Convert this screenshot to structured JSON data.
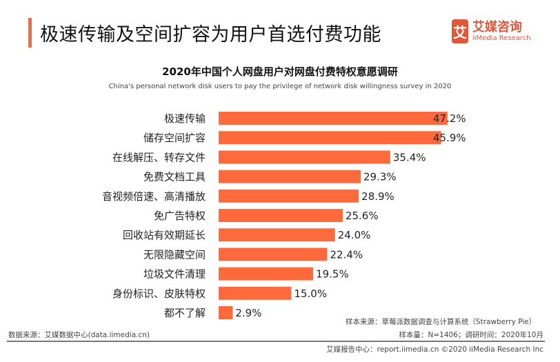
{
  "header": {
    "title": "极速传输及空间扩容为用户首选付费功能",
    "logo_mark": "艾",
    "logo_cn": "艾媒咨询",
    "logo_en": "iiMedia Research"
  },
  "chart_data": {
    "type": "bar",
    "orientation": "horizontal",
    "title": "2020年中国个人网盘用户对网盘付费特权意愿调研",
    "subtitle": "China's personal network disk users to pay the privilege of network disk willingness survey in 2020",
    "categories": [
      "极速传输",
      "储存空间扩容",
      "在线解压、转存文件",
      "免费文档工具",
      "音视频倍速、高清播放",
      "免广告特权",
      "回收站有效期延长",
      "无限隐藏空间",
      "垃圾文件清理",
      "身份标识、皮肤特权",
      "都不了解"
    ],
    "values": [
      47.2,
      45.9,
      35.4,
      29.3,
      28.9,
      25.6,
      24.0,
      22.4,
      19.5,
      15.0,
      2.9
    ],
    "labels": [
      "47.2%",
      "45.9%",
      "35.4%",
      "29.3%",
      "28.9%",
      "25.6%",
      "24.0%",
      "22.4%",
      "19.5%",
      "15.0%",
      "2.9%"
    ],
    "unit": "%",
    "bar_color": "#ff6a3d",
    "grid": false
  },
  "footer": {
    "data_source": "数据来源：艾媒数据中心(data.iimedia.cn)",
    "sample_source": "样本来源：草莓派数据调查与计算系统（Strawberry Pie）",
    "sample_size": "样本量：N=1406；调研时间：2020年10月",
    "report": "艾媒报告中心：report.iimedia.cn   ©2020  iiMedia Research  Inc"
  }
}
